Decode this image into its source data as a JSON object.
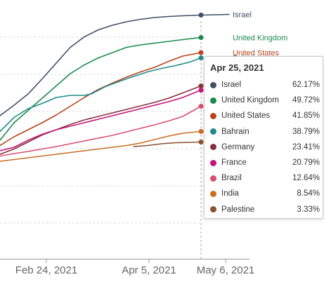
{
  "chart_data": {
    "type": "line",
    "title": "",
    "xlabel": "",
    "ylabel": "",
    "x_ticks": [
      "Feb 24, 2021",
      "Apr 5, 2021",
      "May 6, 2021"
    ],
    "grid": "horizontal dashed",
    "series": [
      {
        "name": "Israel",
        "color": "#3f4f66",
        "end_label": "Israel",
        "points": [
          [
            0,
            330
          ],
          [
            20,
            300
          ],
          [
            40,
            268
          ],
          [
            60,
            225
          ],
          [
            80,
            180
          ],
          [
            100,
            135
          ],
          [
            120,
            105
          ],
          [
            140,
            85
          ],
          [
            160,
            72
          ],
          [
            180,
            62
          ],
          [
            200,
            55
          ],
          [
            220,
            50
          ],
          [
            240,
            47
          ],
          [
            260,
            45
          ],
          [
            286,
            43
          ],
          [
            310,
            42
          ],
          [
            326,
            41
          ]
        ]
      },
      {
        "name": "United Kingdom",
        "color": "#1a8a4a",
        "end_label": "United Kingdom",
        "points": [
          [
            0,
            400
          ],
          [
            20,
            350
          ],
          [
            40,
            315
          ],
          [
            60,
            280
          ],
          [
            80,
            245
          ],
          [
            100,
            210
          ],
          [
            120,
            185
          ],
          [
            140,
            165
          ],
          [
            160,
            150
          ],
          [
            180,
            135
          ],
          [
            200,
            128
          ],
          [
            220,
            123
          ],
          [
            240,
            118
          ],
          [
            260,
            113
          ],
          [
            286,
            107
          ]
        ]
      },
      {
        "name": "United States",
        "color": "#b8431c",
        "end_label": "United States",
        "points": [
          [
            0,
            415
          ],
          [
            20,
            390
          ],
          [
            40,
            370
          ],
          [
            60,
            350
          ],
          [
            80,
            328
          ],
          [
            100,
            303
          ],
          [
            120,
            278
          ],
          [
            140,
            255
          ],
          [
            160,
            237
          ],
          [
            180,
            220
          ],
          [
            200,
            205
          ],
          [
            220,
            192
          ],
          [
            240,
            175
          ],
          [
            260,
            160
          ],
          [
            286,
            150
          ]
        ]
      },
      {
        "name": "Bahrain",
        "color": "#1f8b8b",
        "end_label": "Bahrain",
        "points": [
          [
            0,
            375
          ],
          [
            20,
            335
          ],
          [
            40,
            310
          ],
          [
            60,
            295
          ],
          [
            80,
            278
          ],
          [
            100,
            272
          ],
          [
            120,
            272
          ],
          [
            130,
            268
          ],
          [
            150,
            247
          ],
          [
            170,
            232
          ],
          [
            190,
            218
          ],
          [
            210,
            205
          ],
          [
            230,
            195
          ],
          [
            250,
            187
          ],
          [
            270,
            177
          ],
          [
            286,
            165
          ]
        ]
      },
      {
        "name": "Germany",
        "color": "#883039",
        "end_label": "Germany",
        "points": [
          [
            0,
            440
          ],
          [
            20,
            425
          ],
          [
            40,
            405
          ],
          [
            60,
            385
          ],
          [
            80,
            370
          ],
          [
            100,
            355
          ],
          [
            120,
            342
          ],
          [
            140,
            332
          ],
          [
            160,
            322
          ],
          [
            180,
            312
          ],
          [
            200,
            302
          ],
          [
            220,
            292
          ],
          [
            240,
            280
          ],
          [
            260,
            265
          ],
          [
            286,
            245
          ]
        ]
      },
      {
        "name": "France",
        "color": "#c4147a",
        "end_label": "France",
        "points": [
          [
            0,
            430
          ],
          [
            20,
            420
          ],
          [
            40,
            400
          ],
          [
            60,
            383
          ],
          [
            80,
            370
          ],
          [
            100,
            360
          ],
          [
            120,
            350
          ],
          [
            140,
            340
          ],
          [
            160,
            330
          ],
          [
            180,
            320
          ],
          [
            200,
            310
          ],
          [
            220,
            300
          ],
          [
            240,
            290
          ],
          [
            260,
            278
          ],
          [
            286,
            257
          ]
        ]
      },
      {
        "name": "Brazil",
        "color": "#d94e6f",
        "end_label": "Brazil",
        "points": [
          [
            0,
            445
          ],
          [
            20,
            438
          ],
          [
            40,
            432
          ],
          [
            60,
            425
          ],
          [
            80,
            418
          ],
          [
            100,
            410
          ],
          [
            120,
            402
          ],
          [
            140,
            394
          ],
          [
            160,
            386
          ],
          [
            180,
            376
          ],
          [
            200,
            366
          ],
          [
            220,
            356
          ],
          [
            240,
            345
          ],
          [
            260,
            332
          ],
          [
            286,
            303
          ]
        ]
      },
      {
        "name": "India",
        "color": "#c96f22",
        "end_label": "India",
        "points": [
          [
            0,
            460
          ],
          [
            20,
            455
          ],
          [
            40,
            450
          ],
          [
            60,
            445
          ],
          [
            80,
            440
          ],
          [
            100,
            435
          ],
          [
            120,
            430
          ],
          [
            140,
            425
          ],
          [
            160,
            420
          ],
          [
            180,
            415
          ],
          [
            200,
            408
          ],
          [
            220,
            398
          ],
          [
            240,
            388
          ],
          [
            260,
            380
          ],
          [
            286,
            375
          ],
          [
            310,
            372
          ],
          [
            326,
            371
          ]
        ]
      },
      {
        "name": "Palestine",
        "color": "#8c5130",
        "end_label": "Palestine",
        "points": [
          [
            190,
            418
          ],
          [
            210,
            415
          ],
          [
            230,
            410
          ],
          [
            250,
            407
          ],
          [
            270,
            406
          ],
          [
            286,
            405
          ]
        ]
      }
    ],
    "tooltip": {
      "date": "Apr 25, 2021",
      "rows": [
        {
          "name": "Israel",
          "value": "62.17%",
          "color": "#3f4f66"
        },
        {
          "name": "United Kingdom",
          "value": "49.72%",
          "color": "#1a8a4a"
        },
        {
          "name": "United States",
          "value": "41.85%",
          "color": "#b8431c"
        },
        {
          "name": "Bahrain",
          "value": "38.79%",
          "color": "#1f8b8b"
        },
        {
          "name": "Germany",
          "value": "23.41%",
          "color": "#883039"
        },
        {
          "name": "France",
          "value": "20.79%",
          "color": "#c4147a"
        },
        {
          "name": "Brazil",
          "value": "12.64%",
          "color": "#d94e6f"
        },
        {
          "name": "India",
          "value": "8.54%",
          "color": "#c96f22"
        },
        {
          "name": "Palestine",
          "value": "3.33%",
          "color": "#8c5130"
        }
      ]
    }
  }
}
